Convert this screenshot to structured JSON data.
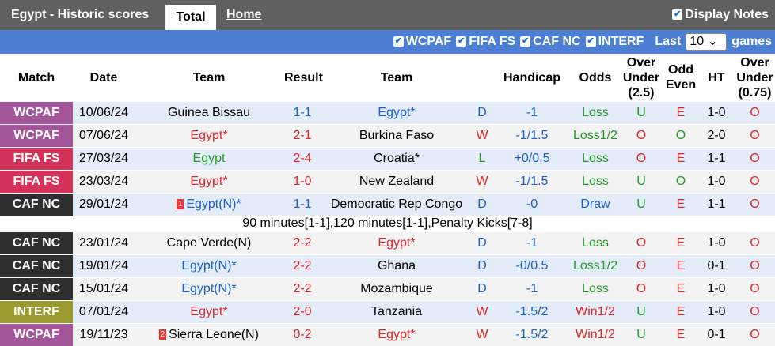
{
  "header": {
    "title": "Egypt - Historic scores",
    "tabs": [
      "Total",
      "Home"
    ],
    "display_notes": "Display Notes"
  },
  "filters": {
    "leagues": [
      "WCPAF",
      "FIFA FS",
      "CAF NC",
      "INTERF"
    ],
    "last_label": "Last",
    "last_value": "10",
    "games_label": "games"
  },
  "table": {
    "columns": [
      "Match",
      "Date",
      "Team",
      "Result",
      "Team",
      "Handicap",
      "Odds",
      "Over Under (2.5)",
      "Odd Even",
      "HT",
      "Over Under (0.75)"
    ],
    "rows": [
      {
        "match": "WCPAF",
        "date": "10/06/24",
        "home": "Guinea Bissau",
        "score": "1-1",
        "away": "Egypt*",
        "wdl": "D",
        "handicap": "-1",
        "odds": "Loss",
        "ou": "U",
        "oe": "E",
        "ht": "1-0",
        "ou2": "O"
      },
      {
        "match": "WCPAF",
        "date": "07/06/24",
        "home": "Egypt*",
        "score": "2-1",
        "away": "Burkina Faso",
        "wdl": "W",
        "handicap": "-1/1.5",
        "odds": "Loss1/2",
        "ou": "O",
        "oe": "O",
        "ht": "2-0",
        "ou2": "O"
      },
      {
        "match": "FIFA FS",
        "date": "27/03/24",
        "home": "Egypt",
        "score": "2-4",
        "away": "Croatia*",
        "wdl": "L",
        "handicap": "+0/0.5",
        "odds": "Loss",
        "ou": "O",
        "oe": "E",
        "ht": "1-1",
        "ou2": "O"
      },
      {
        "match": "FIFA FS",
        "date": "23/03/24",
        "home": "Egypt*",
        "score": "1-0",
        "away": "New Zealand",
        "wdl": "W",
        "handicap": "-1/1.5",
        "odds": "Loss",
        "ou": "U",
        "oe": "O",
        "ht": "1-0",
        "ou2": "O"
      },
      {
        "match": "CAF NC",
        "date": "29/01/24",
        "home_card": "1",
        "home": "Egypt(N)*",
        "score": "1-1",
        "away": "Democratic Rep Congo",
        "wdl": "D",
        "handicap": "-0",
        "odds": "Draw",
        "ou": "U",
        "oe": "E",
        "ht": "1-1",
        "ou2": "O",
        "note": "90 minutes[1-1],120 minutes[1-1],Penalty Kicks[7-8]"
      },
      {
        "match": "CAF NC",
        "date": "23/01/24",
        "home": "Cape Verde(N)",
        "score": "2-2",
        "away": "Egypt*",
        "wdl": "D",
        "handicap": "-1",
        "odds": "Loss",
        "ou": "O",
        "oe": "E",
        "ht": "1-0",
        "ou2": "O"
      },
      {
        "match": "CAF NC",
        "date": "19/01/24",
        "home": "Egypt(N)*",
        "score": "2-2",
        "away": "Ghana",
        "wdl": "D",
        "handicap": "-0/0.5",
        "odds": "Loss1/2",
        "ou": "O",
        "oe": "E",
        "ht": "0-1",
        "ou2": "O"
      },
      {
        "match": "CAF NC",
        "date": "15/01/24",
        "home": "Egypt(N)*",
        "score": "2-2",
        "away": "Mozambique",
        "wdl": "D",
        "handicap": "-1",
        "odds": "Loss",
        "ou": "O",
        "oe": "E",
        "ht": "1-0",
        "ou2": "O"
      },
      {
        "match": "INTERF",
        "date": "07/01/24",
        "home": "Egypt*",
        "score": "2-0",
        "away": "Tanzania",
        "wdl": "W",
        "handicap": "-1.5/2",
        "odds": "Win1/2",
        "ou": "U",
        "oe": "E",
        "ht": "1-0",
        "ou2": "O"
      },
      {
        "match": "WCPAF",
        "date": "19/11/23",
        "home_card": "2",
        "home": "Sierra Leone(N)",
        "score": "0-2",
        "away": "Egypt*",
        "wdl": "W",
        "handicap": "-1.5/2",
        "odds": "Win1/2",
        "ou": "U",
        "oe": "E",
        "ht": "0-1",
        "ou2": "O"
      }
    ]
  }
}
